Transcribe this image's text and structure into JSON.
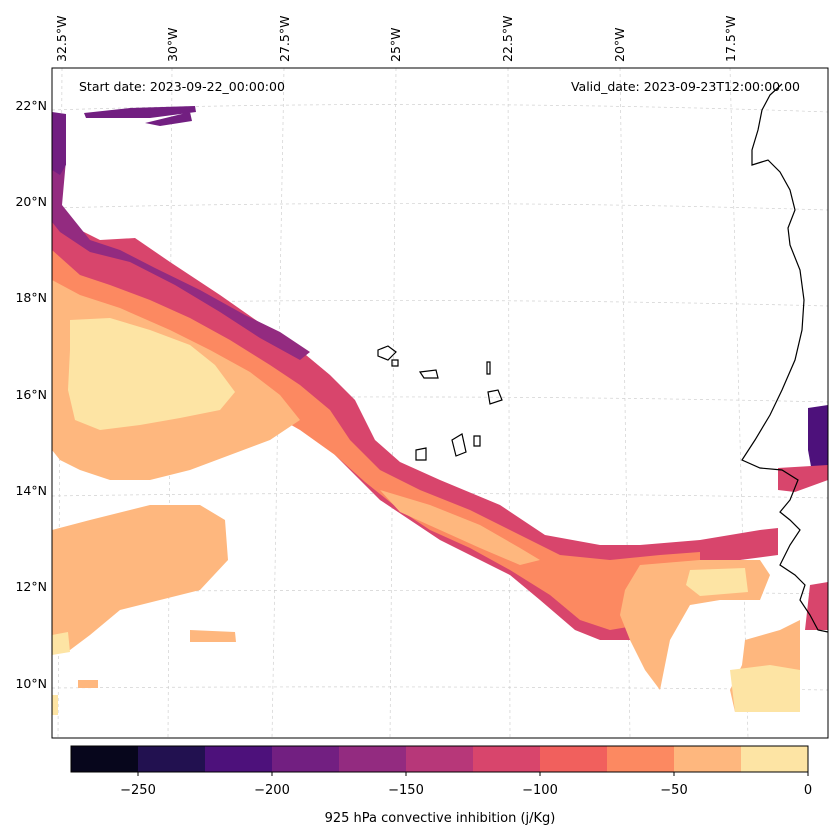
{
  "header": {
    "start_date": "Start date: 2023-09-22_00:00:00",
    "valid_date": "Valid_date: 2023-09-23T12:00:00.00"
  },
  "axes": {
    "lon_labels": [
      "32.5°W",
      "30°W",
      "27.5°W",
      "25°W",
      "22.5°W",
      "20°W",
      "17.5°W"
    ],
    "lat_labels": [
      "22°N",
      "20°N",
      "18°N",
      "16°N",
      "14°N",
      "12°N",
      "10°N"
    ]
  },
  "colorbar": {
    "label": "925 hPa convective inhibition (j/Kg)",
    "ticks": [
      "−250",
      "−200",
      "−150",
      "−100",
      "−50",
      "0"
    ],
    "levels": [
      -275,
      -250,
      -225,
      -200,
      -175,
      -150,
      -125,
      -100,
      -75,
      -50,
      -25,
      0
    ],
    "colors": [
      "#07061c",
      "#221150",
      "#4d117b",
      "#721f81",
      "#932b80",
      "#b73779",
      "#d8456c",
      "#f1605d",
      "#fc8961",
      "#feb77e",
      "#fde4a4"
    ]
  },
  "colors": {
    "coastline": "#000000",
    "grid": "#cccccc"
  }
}
